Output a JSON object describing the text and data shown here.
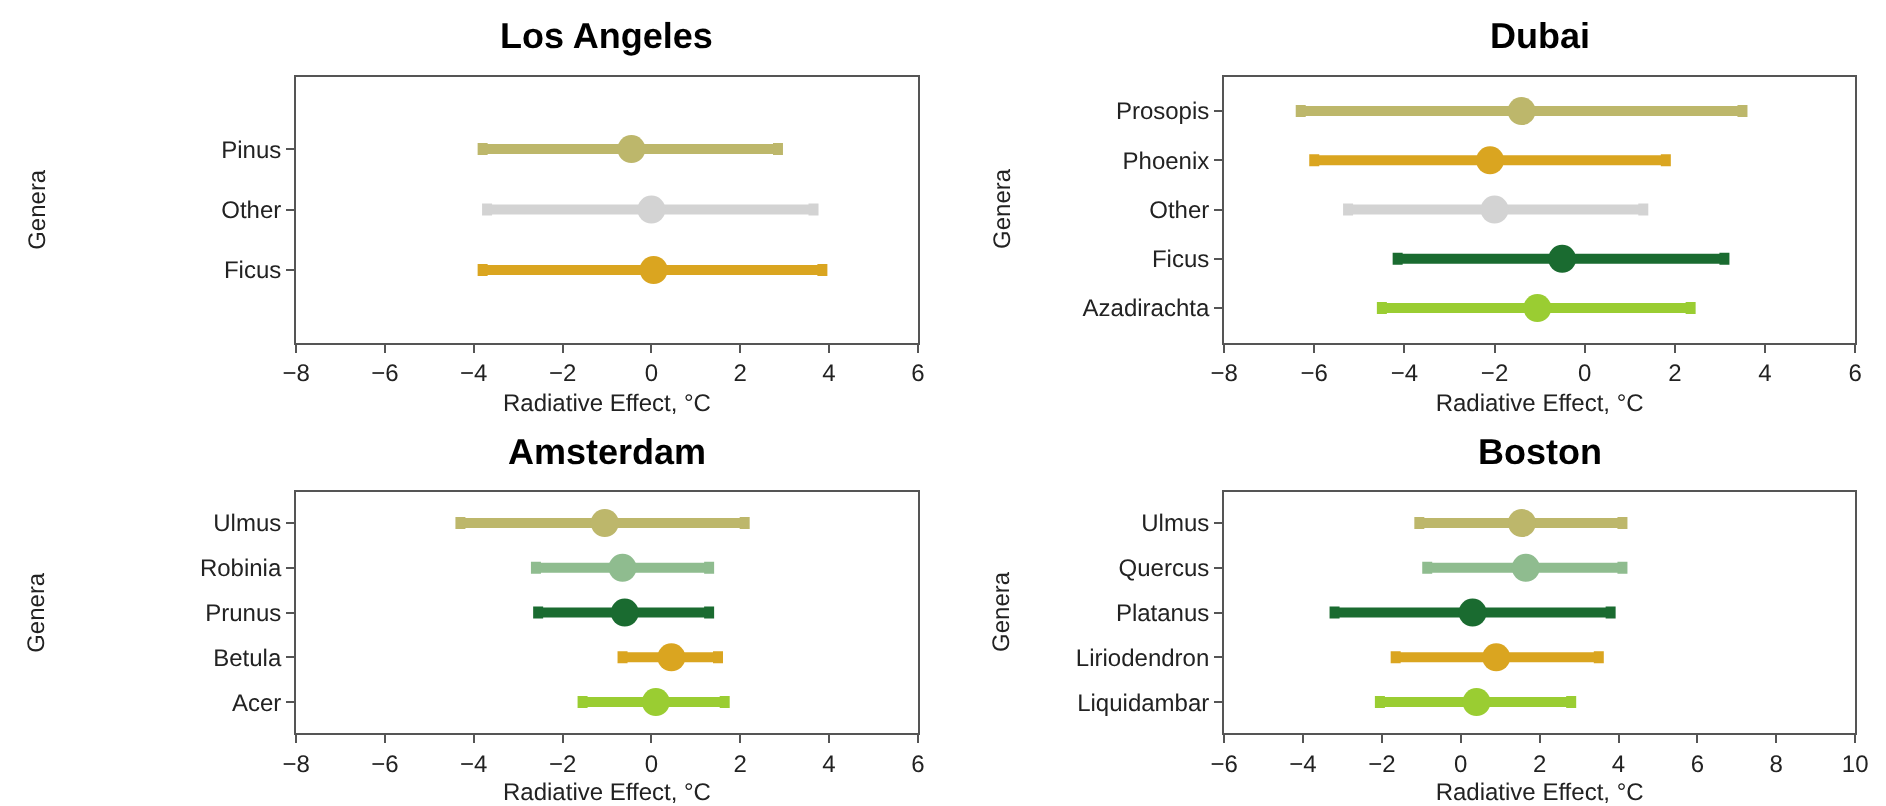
{
  "chart_data": [
    {
      "type": "scatter",
      "title": "Los Angeles",
      "xlabel": "Radiative Effect, °C",
      "ylabel": "Genera",
      "categories": [
        "Pinus",
        "Other",
        "Ficus"
      ],
      "values": [
        -0.45,
        0,
        0.05
      ],
      "errors": [
        [
          -3.8,
          2.85
        ],
        [
          -3.7,
          3.65
        ],
        [
          -3.8,
          3.85
        ]
      ],
      "colors": [
        "#bdb76b",
        "#d3d3d3",
        "#daa520"
      ],
      "xlim": [
        -8,
        6
      ],
      "xticks": [
        -8,
        -6,
        -4,
        -2,
        0,
        2,
        4,
        6
      ],
      "marker": "circle",
      "orientation": "horizontal"
    },
    {
      "type": "scatter",
      "title": "Dubai",
      "xlabel": "Radiative Effect, °C",
      "ylabel": "Genera",
      "categories": [
        "Prosopis",
        "Phoenix",
        "Other",
        "Ficus",
        "Azadirachta"
      ],
      "values": [
        -1.4,
        -2.1,
        -2.0,
        -0.5,
        -1.05
      ],
      "errors": [
        [
          -6.3,
          3.5
        ],
        [
          -6.0,
          1.8
        ],
        [
          -5.25,
          1.3
        ],
        [
          -4.15,
          3.1
        ],
        [
          -4.5,
          2.35
        ]
      ],
      "colors": [
        "#bdb76b",
        "#daa520",
        "#d3d3d3",
        "#1a6b30",
        "#9acd32"
      ],
      "xlim": [
        -8,
        6
      ],
      "xticks": [
        -8,
        -6,
        -4,
        -2,
        0,
        2,
        4,
        6
      ],
      "marker": "circle",
      "orientation": "horizontal"
    },
    {
      "type": "scatter",
      "title": "Amsterdam",
      "xlabel": "Radiative Effect, °C",
      "ylabel": "Genera",
      "categories": [
        "Ulmus",
        "Robinia",
        "Prunus",
        "Betula",
        "Acer"
      ],
      "values": [
        -1.05,
        -0.65,
        -0.6,
        0.45,
        0.1
      ],
      "errors": [
        [
          -4.3,
          2.1
        ],
        [
          -2.6,
          1.3
        ],
        [
          -2.55,
          1.3
        ],
        [
          -0.65,
          1.5
        ],
        [
          -1.55,
          1.65
        ]
      ],
      "colors": [
        "#bdb76b",
        "#8fbc8f",
        "#1a6b30",
        "#daa520",
        "#9acd32"
      ],
      "xlim": [
        -8,
        6
      ],
      "xticks": [
        -8,
        -6,
        -4,
        -2,
        0,
        2,
        4,
        6
      ],
      "marker": "circle",
      "orientation": "horizontal"
    },
    {
      "type": "scatter",
      "title": "Boston",
      "xlabel": "Radiative Effect, °C",
      "ylabel": "Genera",
      "categories": [
        "Ulmus",
        "Quercus",
        "Platanus",
        "Liriodendron",
        "Liquidambar"
      ],
      "values": [
        1.55,
        1.65,
        0.3,
        0.9,
        0.4
      ],
      "errors": [
        [
          -1.05,
          4.1
        ],
        [
          -0.85,
          4.1
        ],
        [
          -3.2,
          3.8
        ],
        [
          -1.65,
          3.5
        ],
        [
          -2.05,
          2.8
        ]
      ],
      "colors": [
        "#bdb76b",
        "#8fbc8f",
        "#1a6b30",
        "#daa520",
        "#9acd32"
      ],
      "xlim": [
        -6,
        10
      ],
      "xticks": [
        -6,
        -4,
        -2,
        0,
        2,
        4,
        6,
        8,
        10
      ],
      "marker": "circle",
      "orientation": "horizontal"
    }
  ]
}
